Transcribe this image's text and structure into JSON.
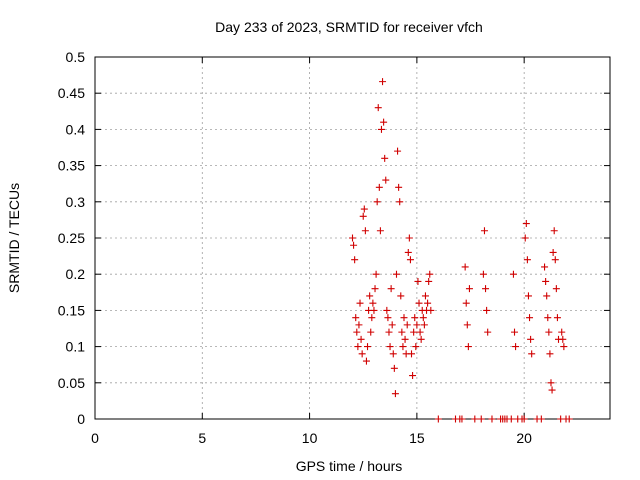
{
  "chart_data": {
    "type": "scatter",
    "title": "Day 233 of 2023, SRMTID for receiver vfch",
    "xlabel": "GPS time / hours",
    "ylabel": "SRMTID / TECUs",
    "xlim": [
      0,
      24
    ],
    "ylim": [
      0,
      0.5
    ],
    "x_ticks": [
      0,
      5,
      10,
      15,
      20
    ],
    "y_ticks": [
      0,
      0.05,
      0.1,
      0.15,
      0.2,
      0.25,
      0.3,
      0.35,
      0.4,
      0.45,
      0.5
    ],
    "x_tick_labels": [
      "0",
      "5",
      "10",
      "15",
      "20"
    ],
    "y_tick_labels": [
      "0",
      "0.05",
      "0.1",
      "0.15",
      "0.2",
      "0.25",
      "0.3",
      "0.35",
      "0.4",
      "0.45",
      "0.5"
    ],
    "grid": true,
    "marker": "plus",
    "marker_color": "#d00000",
    "series": [
      {
        "points": [
          [
            12.0,
            0.25
          ],
          [
            12.05,
            0.24
          ],
          [
            12.1,
            0.22
          ],
          [
            12.15,
            0.14
          ],
          [
            12.2,
            0.12
          ],
          [
            12.25,
            0.1
          ],
          [
            12.3,
            0.13
          ],
          [
            12.35,
            0.16
          ],
          [
            12.4,
            0.11
          ],
          [
            12.45,
            0.09
          ],
          [
            12.5,
            0.28
          ],
          [
            12.55,
            0.29
          ],
          [
            12.6,
            0.26
          ],
          [
            12.65,
            0.08
          ],
          [
            12.7,
            0.1
          ],
          [
            12.75,
            0.15
          ],
          [
            12.8,
            0.17
          ],
          [
            12.85,
            0.12
          ],
          [
            12.9,
            0.14
          ],
          [
            12.95,
            0.16
          ],
          [
            13.0,
            0.15
          ],
          [
            13.05,
            0.18
          ],
          [
            13.1,
            0.2
          ],
          [
            13.15,
            0.3
          ],
          [
            13.2,
            0.43
          ],
          [
            13.25,
            0.32
          ],
          [
            13.3,
            0.26
          ],
          [
            13.35,
            0.4
          ],
          [
            13.4,
            0.466
          ],
          [
            13.45,
            0.41
          ],
          [
            13.5,
            0.36
          ],
          [
            13.55,
            0.33
          ],
          [
            13.6,
            0.15
          ],
          [
            13.65,
            0.14
          ],
          [
            13.7,
            0.12
          ],
          [
            13.75,
            0.1
          ],
          [
            13.8,
            0.18
          ],
          [
            13.85,
            0.13
          ],
          [
            13.9,
            0.09
          ],
          [
            13.95,
            0.07
          ],
          [
            14.0,
            0.035
          ],
          [
            14.05,
            0.2
          ],
          [
            14.1,
            0.37
          ],
          [
            14.15,
            0.32
          ],
          [
            14.2,
            0.3
          ],
          [
            14.25,
            0.17
          ],
          [
            14.3,
            0.12
          ],
          [
            14.35,
            0.1
          ],
          [
            14.4,
            0.14
          ],
          [
            14.45,
            0.11
          ],
          [
            14.5,
            0.09
          ],
          [
            14.55,
            0.13
          ],
          [
            14.6,
            0.23
          ],
          [
            14.65,
            0.25
          ],
          [
            14.7,
            0.22
          ],
          [
            14.75,
            0.09
          ],
          [
            14.8,
            0.06
          ],
          [
            14.85,
            0.12
          ],
          [
            14.9,
            0.14
          ],
          [
            14.95,
            0.1
          ],
          [
            15.0,
            0.13
          ],
          [
            15.05,
            0.19
          ],
          [
            15.1,
            0.16
          ],
          [
            15.15,
            0.12
          ],
          [
            15.2,
            0.11
          ],
          [
            15.25,
            0.15
          ],
          [
            15.3,
            0.14
          ],
          [
            15.35,
            0.13
          ],
          [
            15.4,
            0.17
          ],
          [
            15.45,
            0.15
          ],
          [
            15.5,
            0.16
          ],
          [
            15.55,
            0.19
          ],
          [
            15.6,
            0.2
          ],
          [
            15.65,
            0.15
          ],
          [
            16.0,
            0.0
          ],
          [
            16.8,
            0.0
          ],
          [
            17.0,
            0.0
          ],
          [
            17.1,
            0.0
          ],
          [
            17.25,
            0.21
          ],
          [
            17.3,
            0.16
          ],
          [
            17.35,
            0.13
          ],
          [
            17.4,
            0.1
          ],
          [
            17.45,
            0.18
          ],
          [
            17.7,
            0.0
          ],
          [
            18.0,
            0.0
          ],
          [
            18.1,
            0.2
          ],
          [
            18.15,
            0.26
          ],
          [
            18.2,
            0.18
          ],
          [
            18.25,
            0.15
          ],
          [
            18.3,
            0.12
          ],
          [
            18.5,
            0.0
          ],
          [
            18.9,
            0.0
          ],
          [
            19.0,
            0.0
          ],
          [
            19.1,
            0.0
          ],
          [
            19.2,
            0.0
          ],
          [
            19.4,
            0.0
          ],
          [
            19.5,
            0.2
          ],
          [
            19.55,
            0.12
          ],
          [
            19.6,
            0.1
          ],
          [
            19.7,
            0.0
          ],
          [
            19.9,
            0.0
          ],
          [
            20.0,
            0.0
          ],
          [
            20.05,
            0.25
          ],
          [
            20.1,
            0.27
          ],
          [
            20.15,
            0.22
          ],
          [
            20.2,
            0.17
          ],
          [
            20.25,
            0.14
          ],
          [
            20.3,
            0.11
          ],
          [
            20.35,
            0.09
          ],
          [
            20.6,
            0.0
          ],
          [
            20.8,
            0.0
          ],
          [
            20.95,
            0.21
          ],
          [
            21.0,
            0.19
          ],
          [
            21.05,
            0.17
          ],
          [
            21.1,
            0.14
          ],
          [
            21.15,
            0.12
          ],
          [
            21.2,
            0.09
          ],
          [
            21.25,
            0.05
          ],
          [
            21.3,
            0.04
          ],
          [
            21.35,
            0.23
          ],
          [
            21.4,
            0.26
          ],
          [
            21.45,
            0.22
          ],
          [
            21.5,
            0.18
          ],
          [
            21.55,
            0.14
          ],
          [
            21.6,
            0.11
          ],
          [
            21.7,
            0.0
          ],
          [
            21.75,
            0.12
          ],
          [
            21.8,
            0.11
          ],
          [
            21.85,
            0.1
          ],
          [
            21.95,
            0.0
          ],
          [
            22.1,
            0.0
          ]
        ]
      }
    ]
  }
}
